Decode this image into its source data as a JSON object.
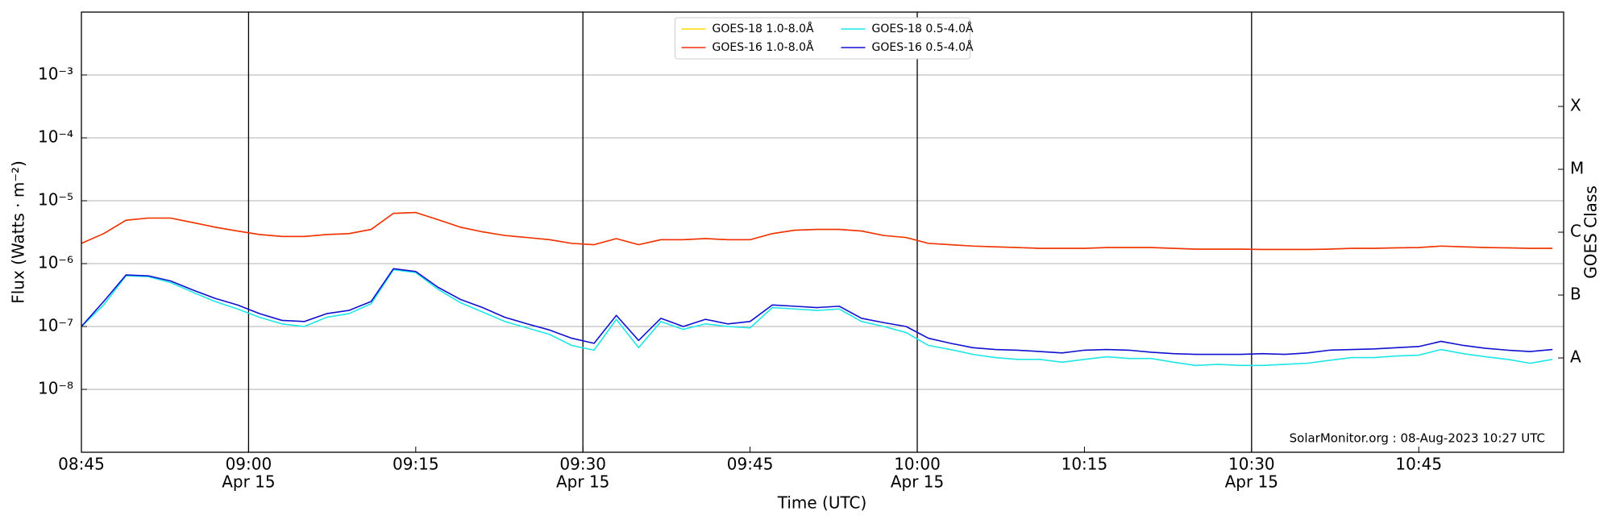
{
  "chart_data": {
    "type": "line",
    "xlabel": "Time (UTC)",
    "ylabel": "Flux (Watts · m⁻²)",
    "y2label": "GOES Class",
    "annotation": "SolarMonitor.org : 08-Aug-2023 10:27 UTC",
    "log_scale": true,
    "grid": true,
    "legend": "upper center",
    "xlim": [
      "08:45",
      "10:58"
    ],
    "xticks": [
      "08:45",
      "09:00",
      "09:15",
      "09:30",
      "09:45",
      "10:00",
      "10:15",
      "10:30",
      "10:45"
    ],
    "xtick_dates": [
      null,
      "Apr 15",
      null,
      "Apr 15",
      null,
      "Apr 15",
      null,
      "Apr 15",
      null
    ],
    "ylim": [
      1e-09,
      0.01
    ],
    "yticks": [
      {
        "value": 1e-08,
        "label": "10⁻⁸"
      },
      {
        "value": 1e-07,
        "label": "10⁻⁷"
      },
      {
        "value": 1e-06,
        "label": "10⁻⁶"
      },
      {
        "value": 1e-05,
        "label": "10⁻⁵"
      },
      {
        "value": 0.0001,
        "label": "10⁻⁴"
      },
      {
        "value": 0.001,
        "label": "10⁻³"
      }
    ],
    "y2lim": [
      1e-09,
      0.01
    ],
    "y2ticks": [
      {
        "value": 3.16e-08,
        "label": "A"
      },
      {
        "value": 3.16e-07,
        "label": "B"
      },
      {
        "value": 3.16e-06,
        "label": "C"
      },
      {
        "value": 3.16e-05,
        "label": "M"
      },
      {
        "value": 0.000316,
        "label": "X"
      }
    ],
    "x": [
      "08:45",
      "08:47",
      "08:49",
      "08:51",
      "08:53",
      "08:55",
      "08:57",
      "08:59",
      "09:01",
      "09:03",
      "09:05",
      "09:07",
      "09:09",
      "09:11",
      "09:13",
      "09:15",
      "09:17",
      "09:19",
      "09:21",
      "09:23",
      "09:25",
      "09:27",
      "09:29",
      "09:31",
      "09:33",
      "09:35",
      "09:37",
      "09:39",
      "09:41",
      "09:43",
      "09:45",
      "09:47",
      "09:49",
      "09:51",
      "09:53",
      "09:55",
      "09:57",
      "09:59",
      "10:01",
      "10:03",
      "10:05",
      "10:07",
      "10:09",
      "10:11",
      "10:13",
      "10:15",
      "10:17",
      "10:19",
      "10:21",
      "10:23",
      "10:25",
      "10:27",
      "10:29",
      "10:31",
      "10:33",
      "10:35",
      "10:37",
      "10:39",
      "10:41",
      "10:43",
      "10:45",
      "10:47",
      "10:49",
      "10:51",
      "10:53",
      "10:55",
      "10:57"
    ],
    "series": [
      {
        "name": "GOES-18 1.0-8.0Å",
        "color": "#ffd700",
        "values": [
          2.1e-06,
          3e-06,
          4.9e-06,
          5.3e-06,
          5.3e-06,
          4.5e-06,
          3.8e-06,
          3.3e-06,
          2.9e-06,
          2.7e-06,
          2.7e-06,
          2.9e-06,
          3e-06,
          3.5e-06,
          6.3e-06,
          6.5e-06,
          5e-06,
          3.8e-06,
          3.2e-06,
          2.8e-06,
          2.6e-06,
          2.4e-06,
          2.1e-06,
          2e-06,
          2.5e-06,
          2e-06,
          2.4e-06,
          2.4e-06,
          2.5e-06,
          2.4e-06,
          2.4e-06,
          3e-06,
          3.4e-06,
          3.5e-06,
          3.5e-06,
          3.3e-06,
          2.8e-06,
          2.6e-06,
          2.1e-06,
          2e-06,
          1.9e-06,
          1.85e-06,
          1.8e-06,
          1.75e-06,
          1.75e-06,
          1.75e-06,
          1.8e-06,
          1.8e-06,
          1.8e-06,
          1.75e-06,
          1.7e-06,
          1.7e-06,
          1.7e-06,
          1.68e-06,
          1.68e-06,
          1.68e-06,
          1.7e-06,
          1.75e-06,
          1.75e-06,
          1.78e-06,
          1.8e-06,
          1.9e-06,
          1.85e-06,
          1.8e-06,
          1.78e-06,
          1.75e-06,
          1.75e-06
        ]
      },
      {
        "name": "GOES-16 1.0-8.0Å",
        "color": "#f03010",
        "values": [
          2.1e-06,
          3e-06,
          4.9e-06,
          5.3e-06,
          5.3e-06,
          4.5e-06,
          3.8e-06,
          3.3e-06,
          2.9e-06,
          2.7e-06,
          2.7e-06,
          2.9e-06,
          3e-06,
          3.5e-06,
          6.3e-06,
          6.5e-06,
          5e-06,
          3.8e-06,
          3.2e-06,
          2.8e-06,
          2.6e-06,
          2.4e-06,
          2.1e-06,
          2e-06,
          2.5e-06,
          2e-06,
          2.4e-06,
          2.4e-06,
          2.5e-06,
          2.4e-06,
          2.4e-06,
          3e-06,
          3.4e-06,
          3.5e-06,
          3.5e-06,
          3.3e-06,
          2.8e-06,
          2.6e-06,
          2.1e-06,
          2e-06,
          1.9e-06,
          1.85e-06,
          1.8e-06,
          1.75e-06,
          1.75e-06,
          1.75e-06,
          1.8e-06,
          1.8e-06,
          1.8e-06,
          1.75e-06,
          1.7e-06,
          1.7e-06,
          1.7e-06,
          1.68e-06,
          1.68e-06,
          1.68e-06,
          1.7e-06,
          1.75e-06,
          1.75e-06,
          1.78e-06,
          1.8e-06,
          1.9e-06,
          1.85e-06,
          1.8e-06,
          1.78e-06,
          1.75e-06,
          1.75e-06
        ]
      },
      {
        "name": "GOES-18 0.5-4.0Å",
        "color": "#1fe6e6",
        "values": [
          1e-07,
          2.2e-07,
          6.4e-07,
          6.2e-07,
          5e-07,
          3.5e-07,
          2.5e-07,
          1.9e-07,
          1.4e-07,
          1.1e-07,
          1e-07,
          1.4e-07,
          1.6e-07,
          2.3e-07,
          8e-07,
          7.2e-07,
          3.9e-07,
          2.4e-07,
          1.7e-07,
          1.2e-07,
          9.5e-08,
          7.5e-08,
          5e-08,
          4.2e-08,
          1.3e-07,
          4.6e-08,
          1.2e-07,
          9e-08,
          1.1e-07,
          1e-07,
          9.5e-08,
          2e-07,
          1.9e-07,
          1.8e-07,
          1.9e-07,
          1.2e-07,
          1e-07,
          8e-08,
          5e-08,
          4.3e-08,
          3.6e-08,
          3.2e-08,
          3e-08,
          3e-08,
          2.7e-08,
          3e-08,
          3.3e-08,
          3.1e-08,
          3.1e-08,
          2.7e-08,
          2.4e-08,
          2.5e-08,
          2.4e-08,
          2.4e-08,
          2.5e-08,
          2.6e-08,
          2.9e-08,
          3.2e-08,
          3.2e-08,
          3.4e-08,
          3.5e-08,
          4.3e-08,
          3.7e-08,
          3.3e-08,
          3e-08,
          2.6e-08,
          3e-08
        ]
      },
      {
        "name": "GOES-16 0.5-4.0Å",
        "color": "#1010d0",
        "values": [
          1e-07,
          2.5e-07,
          6.6e-07,
          6.4e-07,
          5.3e-07,
          3.8e-07,
          2.8e-07,
          2.2e-07,
          1.6e-07,
          1.25e-07,
          1.2e-07,
          1.6e-07,
          1.8e-07,
          2.5e-07,
          8.3e-07,
          7.5e-07,
          4.2e-07,
          2.7e-07,
          2e-07,
          1.4e-07,
          1.1e-07,
          8.8e-08,
          6.5e-08,
          5.4e-08,
          1.5e-07,
          6e-08,
          1.35e-07,
          1e-07,
          1.3e-07,
          1.1e-07,
          1.2e-07,
          2.2e-07,
          2.1e-07,
          2e-07,
          2.1e-07,
          1.35e-07,
          1.15e-07,
          1e-07,
          6.5e-08,
          5.4e-08,
          4.6e-08,
          4.3e-08,
          4.2e-08,
          4e-08,
          3.8e-08,
          4.2e-08,
          4.3e-08,
          4.2e-08,
          3.9e-08,
          3.7e-08,
          3.6e-08,
          3.6e-08,
          3.6e-08,
          3.7e-08,
          3.6e-08,
          3.8e-08,
          4.2e-08,
          4.3e-08,
          4.4e-08,
          4.6e-08,
          4.8e-08,
          5.8e-08,
          5e-08,
          4.5e-08,
          4.2e-08,
          4e-08,
          4.3e-08
        ]
      }
    ]
  }
}
